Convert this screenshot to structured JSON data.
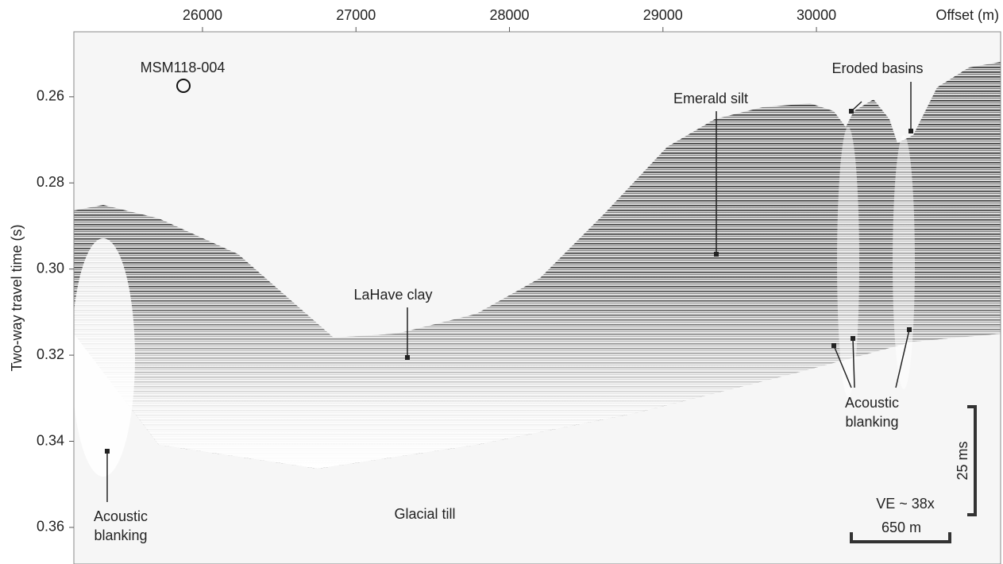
{
  "x_axis": {
    "label": "Offset (m)",
    "lim": [
      25162,
      31200
    ],
    "ticks": [
      26000,
      27000,
      28000,
      29000,
      30000
    ]
  },
  "y_axis": {
    "label": "Two-way travel time (s)",
    "lim": [
      0.2449,
      0.3685
    ],
    "ticks": [
      0.26,
      0.28,
      {
        "value": 0.3,
        "label": "0.30"
      },
      0.32,
      0.34,
      0.36
    ]
  },
  "annotations": {
    "core": "MSM118-004",
    "eroded_basins": "Eroded basins",
    "emerald_silt": "Emerald silt",
    "lahave_clay": "LaHave clay",
    "glacial_till": "Glacial till",
    "blanking_left": [
      "Acoustic",
      "blanking"
    ],
    "blanking_right": [
      "Acoustic",
      "blanking"
    ]
  },
  "scale": {
    "vertical": "25 ms",
    "horizontal": "650 m",
    "ve": "VE ~ 38x"
  }
}
